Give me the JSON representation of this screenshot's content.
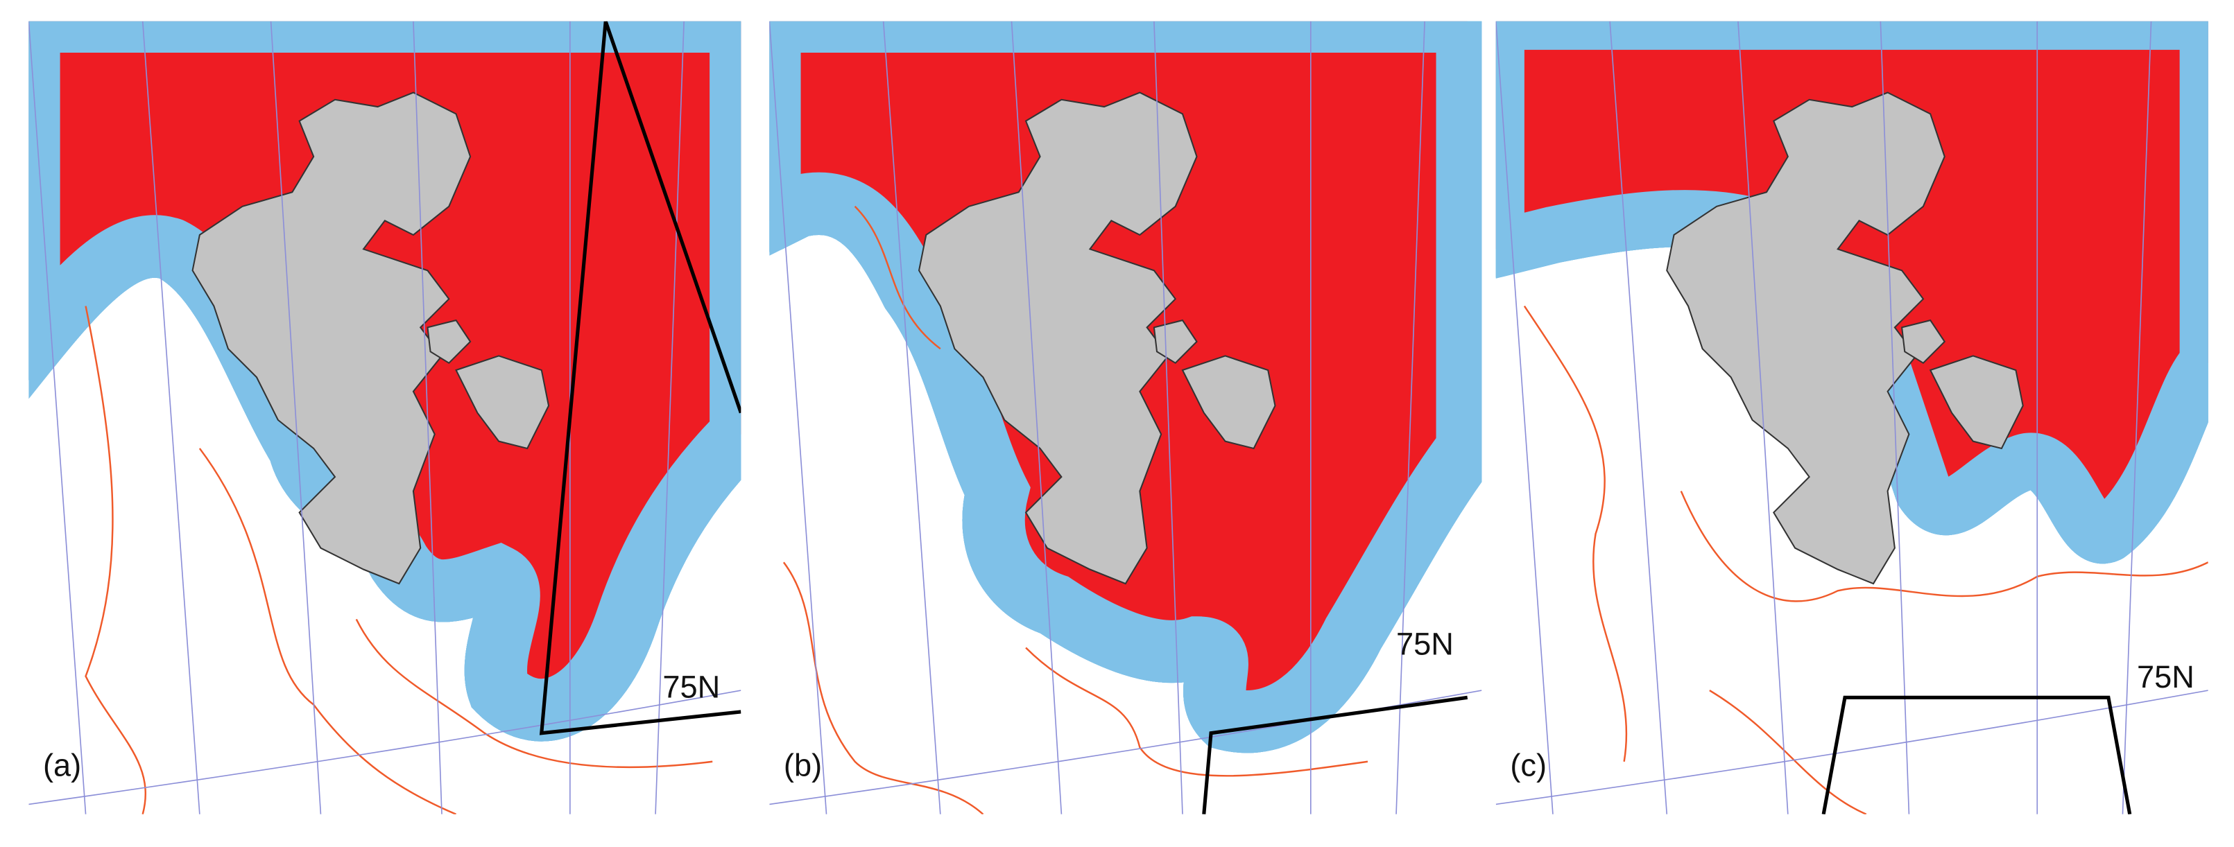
{
  "panels": [
    {
      "label": "(a)",
      "latitude_label": "75N"
    },
    {
      "label": "(b)",
      "latitude_label": "75N"
    },
    {
      "label": "(c)",
      "latitude_label": "75N"
    }
  ]
}
